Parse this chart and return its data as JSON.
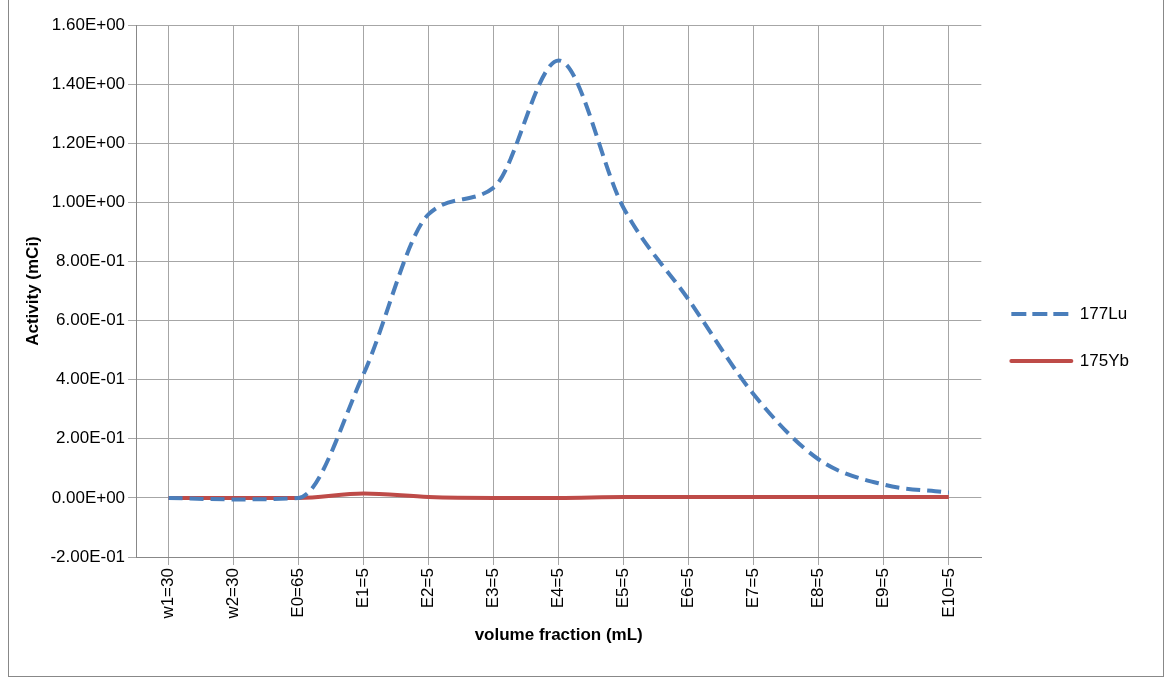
{
  "chart_data": {
    "type": "line",
    "xlabel": "volume fraction (mL)",
    "ylabel": "Activity (mCi)",
    "categories": [
      "w1=30",
      "w2=30",
      "E0=65",
      "E1=5",
      "E2=5",
      "E3=5",
      "E4=5",
      "E5=5",
      "E6=5",
      "E7=5",
      "E8=5",
      "E9=5",
      "E10=5"
    ],
    "series": [
      {
        "name": "177Lu",
        "color": "#4a7ebb",
        "line_style": "dashed",
        "values": [
          0,
          -0.005,
          0,
          0.42,
          0.96,
          1.05,
          1.48,
          0.98,
          0.67,
          0.35,
          0.13,
          0.045,
          0.018
        ]
      },
      {
        "name": "175Yb",
        "color": "#be4b48",
        "line_style": "solid",
        "values": [
          0,
          0,
          0,
          0.015,
          0.003,
          0,
          0,
          0.003,
          0.003,
          0.003,
          0.003,
          0.003,
          0.003
        ]
      }
    ],
    "ylim": [
      -0.2,
      1.6
    ],
    "yticks": [
      {
        "value": -0.2,
        "label": "-2.00E-01"
      },
      {
        "value": 0,
        "label": "0.00E+00"
      },
      {
        "value": 0.2,
        "label": "2.00E-01"
      },
      {
        "value": 0.4,
        "label": "4.00E-01"
      },
      {
        "value": 0.6,
        "label": "6.00E-01"
      },
      {
        "value": 0.8,
        "label": "8.00E-01"
      },
      {
        "value": 1,
        "label": "1.00E+00"
      },
      {
        "value": 1.2,
        "label": "1.20E+00"
      },
      {
        "value": 1.4,
        "label": "1.40E+00"
      },
      {
        "value": 1.6,
        "label": "1.60E+00"
      }
    ],
    "grid": true,
    "legend": "right",
    "marker": "none"
  }
}
